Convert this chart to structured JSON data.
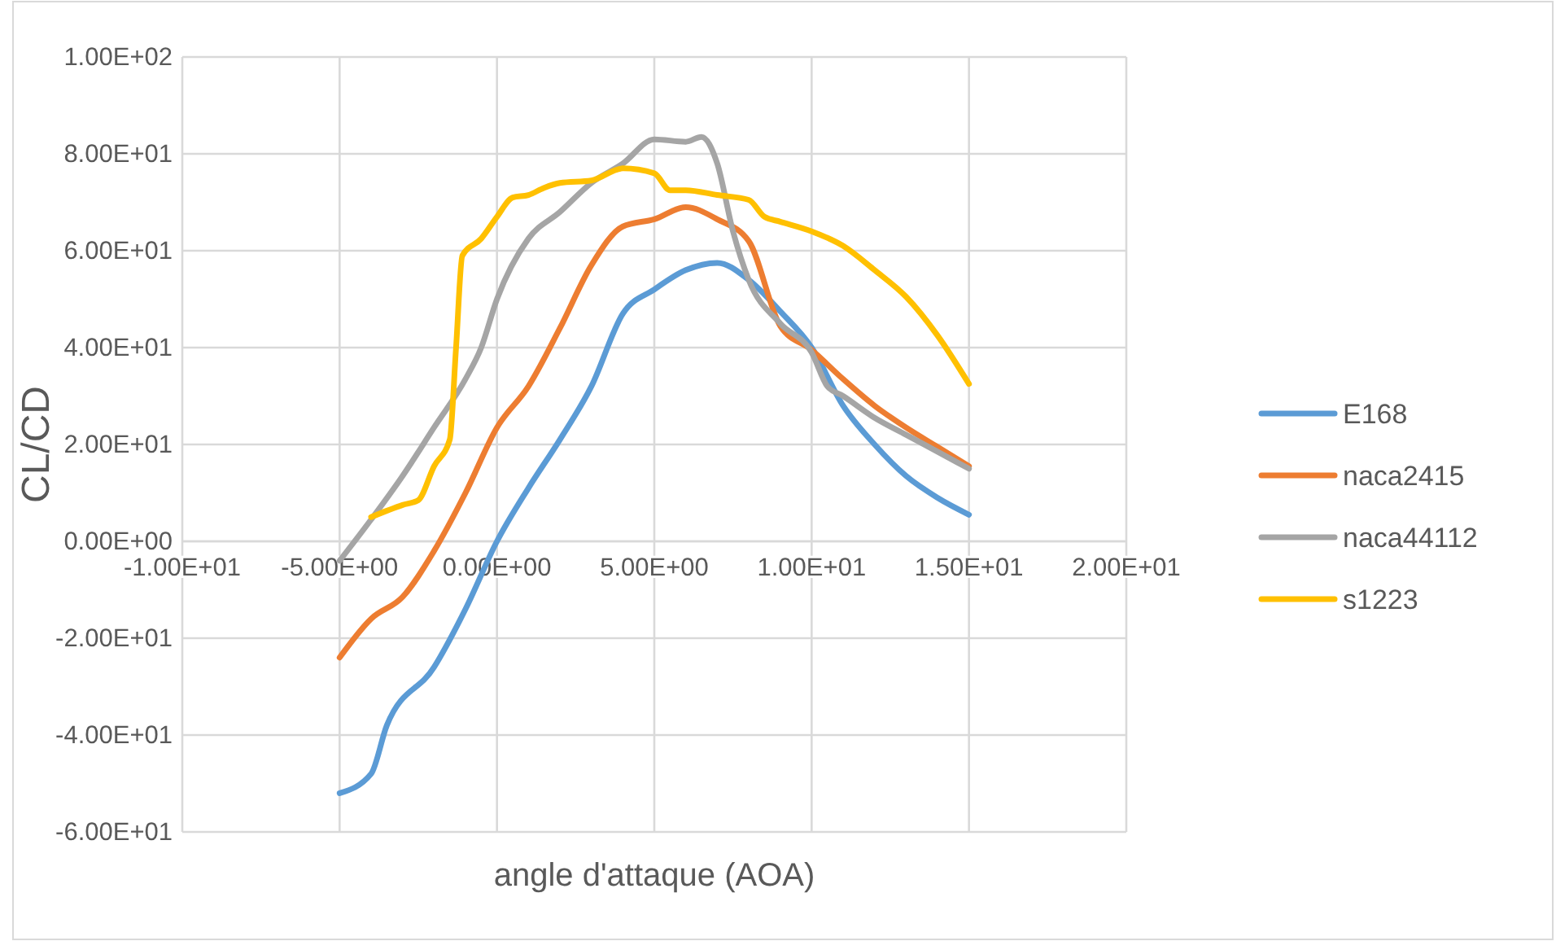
{
  "chart_data": {
    "type": "line",
    "xlabel": "angle d'attaque (AOA)",
    "ylabel": "CL/CD",
    "xlim": [
      -10,
      20
    ],
    "ylim": [
      -60,
      100
    ],
    "xticks": [
      {
        "value": -10,
        "label": "-1.00E+01"
      },
      {
        "value": -5,
        "label": "-5.00E+00"
      },
      {
        "value": 0,
        "label": "0.00E+00"
      },
      {
        "value": 5,
        "label": "5.00E+00"
      },
      {
        "value": 10,
        "label": "1.00E+01"
      },
      {
        "value": 15,
        "label": "1.50E+01"
      },
      {
        "value": 20,
        "label": "2.00E+01"
      }
    ],
    "yticks": [
      {
        "value": -60,
        "label": "-6.00E+01"
      },
      {
        "value": -40,
        "label": "-4.00E+01"
      },
      {
        "value": -20,
        "label": "-2.00E+01"
      },
      {
        "value": 0,
        "label": "0.00E+00"
      },
      {
        "value": 20,
        "label": "2.00E+01"
      },
      {
        "value": 40,
        "label": "4.00E+01"
      },
      {
        "value": 60,
        "label": "6.00E+01"
      },
      {
        "value": 80,
        "label": "8.00E+01"
      },
      {
        "value": 100,
        "label": "1.00E+02"
      }
    ],
    "grid": true,
    "legend": "right",
    "marker": "none",
    "line_style": "solid",
    "series": [
      {
        "name": "E168",
        "color": "#5b9bd5",
        "x": [
          -5,
          -4,
          -3.5,
          -2,
          -1,
          0,
          1,
          2,
          3,
          4,
          5,
          6,
          7,
          8,
          9,
          10,
          11,
          12,
          13,
          14,
          15
        ],
        "values": [
          -52,
          -48,
          -38,
          -26,
          -14,
          0,
          11,
          21,
          32,
          47,
          52,
          56,
          57.5,
          54,
          47.5,
          40,
          28,
          20,
          13.5,
          9,
          5.5
        ]
      },
      {
        "name": "naca2415",
        "color": "#ed7d31",
        "x": [
          -5,
          -4,
          -3,
          -2,
          -1,
          0,
          1,
          2,
          3,
          4,
          5,
          6,
          7,
          8,
          9,
          10,
          11,
          12,
          13,
          14,
          15
        ],
        "values": [
          -24,
          -16,
          -11.5,
          -2,
          10,
          23.5,
          32,
          44,
          57,
          65,
          66.5,
          69,
          66.5,
          62,
          44.5,
          39.5,
          33.5,
          28,
          23.5,
          19.5,
          15.5
        ]
      },
      {
        "name": "naca44112",
        "color": "#a5a5a5",
        "x": [
          -5,
          -4,
          -3,
          -2,
          -1,
          -0.5,
          0,
          1,
          2,
          3,
          4,
          5,
          6,
          6.5,
          7,
          7.5,
          8,
          9,
          10,
          10.5,
          11,
          12,
          13,
          14,
          15
        ],
        "values": [
          -4,
          4.5,
          13.5,
          23.5,
          33.5,
          40,
          50,
          62.5,
          68,
          74,
          78,
          83,
          82.5,
          83.5,
          78,
          64,
          54,
          45,
          39,
          32,
          30,
          25.5,
          22,
          18.5,
          15
        ]
      },
      {
        "name": "s1223",
        "color": "#ffc000",
        "x": [
          -4,
          -3,
          -2.5,
          -2,
          -1.5,
          -1.3,
          -1.1,
          -0.5,
          0,
          0.5,
          1,
          1.5,
          2,
          3,
          4,
          5,
          5.5,
          6,
          7,
          8,
          8.5,
          9,
          10,
          11,
          12,
          13,
          14,
          15
        ],
        "values": [
          5,
          7.5,
          8.5,
          15.5,
          21,
          40,
          59,
          62.5,
          67,
          71,
          71.5,
          73,
          74,
          74.5,
          77,
          76,
          72.5,
          72.5,
          71.5,
          70.5,
          67,
          66,
          64,
          61,
          56,
          50.5,
          42.5,
          32.5
        ]
      }
    ]
  }
}
